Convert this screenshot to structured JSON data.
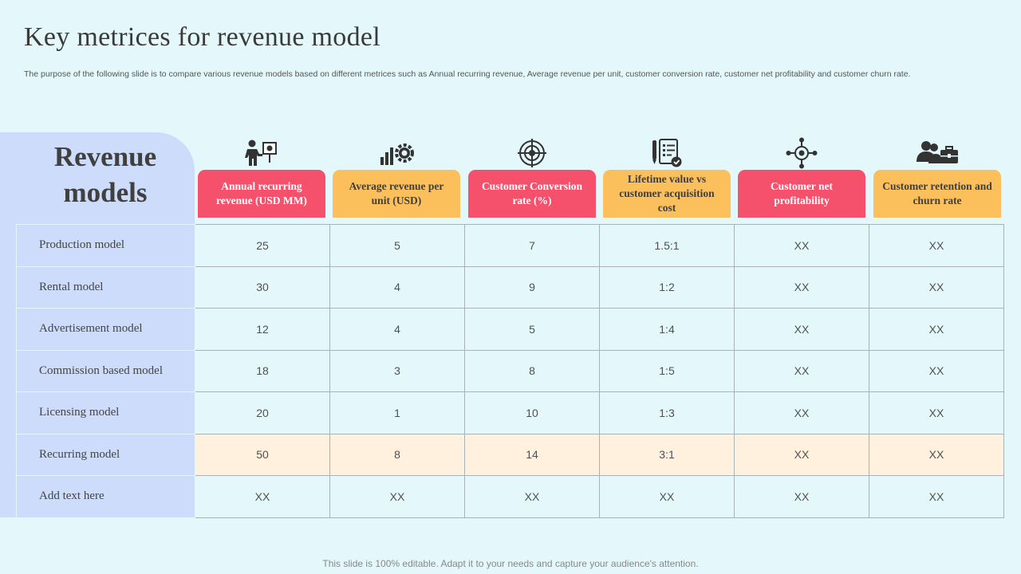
{
  "title": "Key metrices for revenue model",
  "subtitle": "The purpose of the following slide is to compare various revenue models based on different metrices such as Annual recurring revenue, Average revenue per unit, customer conversion rate, customer net profitability and customer churn rate.",
  "panel_title": "Revenue models",
  "columns": [
    {
      "label": "Annual recurring revenue  (USD MM)",
      "color": "#f5516d",
      "icon": "presenter-icon"
    },
    {
      "label": "Average revenue per unit (USD)",
      "color": "#fbbf5b",
      "icon": "growth-gear-icon"
    },
    {
      "label": "Customer Conversion rate (%)",
      "color": "#f5516d",
      "icon": "target-icon"
    },
    {
      "label": "Lifetime value vs customer acquisition cost",
      "color": "#fbbf5b",
      "icon": "checklist-icon"
    },
    {
      "label": "Customer net profitability",
      "color": "#f5516d",
      "icon": "network-target-icon"
    },
    {
      "label": "Customer retention and churn rate",
      "color": "#fbbf5b",
      "icon": "users-briefcase-icon"
    }
  ],
  "rows": [
    {
      "label": "Production model",
      "values": [
        "25",
        "5",
        "7",
        "1.5:1",
        "XX",
        "XX"
      ]
    },
    {
      "label": "Rental model",
      "values": [
        "30",
        "4",
        "9",
        "1:2",
        "XX",
        "XX"
      ]
    },
    {
      "label": "Advertisement model",
      "values": [
        "12",
        "4",
        "5",
        "1:4",
        "XX",
        "XX"
      ]
    },
    {
      "label": "Commission based model",
      "values": [
        "18",
        "3",
        "8",
        "1:5",
        "XX",
        "XX"
      ]
    },
    {
      "label": "Licensing model",
      "values": [
        "20",
        "1",
        "10",
        "1:3",
        "XX",
        "XX"
      ]
    },
    {
      "label": "Recurring model",
      "values": [
        "50",
        "8",
        "14",
        "3:1",
        "XX",
        "XX"
      ],
      "highlight": true
    },
    {
      "label": "Add text here",
      "values": [
        "XX",
        "XX",
        "XX",
        "XX",
        "XX",
        "XX"
      ]
    }
  ],
  "footer": "This slide is 100% editable. Adapt it to your needs and capture your audience's attention."
}
